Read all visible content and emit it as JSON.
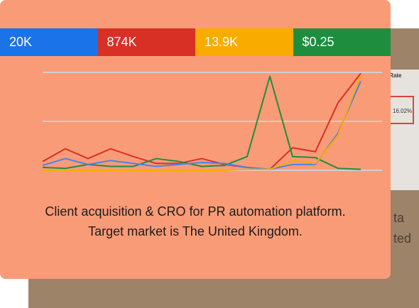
{
  "metrics": [
    {
      "value": "20K",
      "color": "#1a73e8"
    },
    {
      "value": "874K",
      "color": "#d93025"
    },
    {
      "value": "13.9K",
      "color": "#f9ab00"
    },
    {
      "value": "$0.25",
      "color": "#1e8e3e"
    }
  ],
  "chart_data": {
    "type": "line",
    "ylim": [
      0,
      100
    ],
    "yticks": [
      0,
      50,
      100
    ],
    "grid": true,
    "series": [
      {
        "color": "#d93025",
        "values": [
          9,
          22,
          12,
          22,
          14,
          7,
          7,
          12,
          6,
          3,
          1,
          23,
          19,
          69,
          99
        ]
      },
      {
        "color": "#1e8e3e",
        "values": [
          3,
          2,
          6,
          4,
          4,
          12,
          9,
          4,
          5,
          14,
          96,
          14,
          13,
          2,
          1
        ]
      },
      {
        "color": "#4285f4",
        "values": [
          5,
          12,
          6,
          10,
          7,
          4,
          6,
          8,
          7,
          3,
          1,
          6,
          6,
          38,
          91
        ]
      },
      {
        "color": "#f9ab00",
        "values": [
          0,
          0,
          0,
          0,
          0,
          0,
          0,
          0,
          0,
          1,
          1,
          10,
          7,
          36,
          97
        ]
      }
    ]
  },
  "description": [
    "Client acquisition & CRO for PR automation platform.",
    "Target market is The United Kingdom."
  ],
  "back_card": {
    "column_header": "n Rate",
    "cell": "16.02%",
    "lines": [
      "ta",
      "ted"
    ]
  }
}
